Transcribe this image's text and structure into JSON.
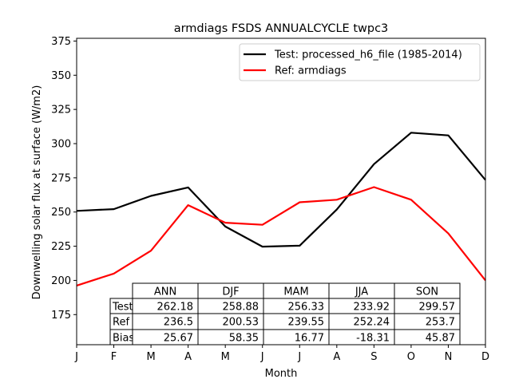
{
  "chart_data": {
    "type": "line",
    "title": "armdiags FSDS ANNUALCYCLE twpc3",
    "xlabel": "Month",
    "ylabel": "Downwelling solar flux at surface (W/m2)",
    "categories": [
      "J",
      "F",
      "M",
      "A",
      "M",
      "J",
      "J",
      "A",
      "S",
      "O",
      "N",
      "D"
    ],
    "ylim": [
      153,
      377
    ],
    "yticks": [
      175,
      200,
      225,
      250,
      275,
      300,
      325,
      350,
      375
    ],
    "grid": false,
    "legend_position": "top-right",
    "series": [
      {
        "name": "Test: processed_h6_file (1985-2014)",
        "color": "#000000",
        "values": [
          250.8,
          252.1,
          261.8,
          268.0,
          239.4,
          224.7,
          225.4,
          251.8,
          285.0,
          308.0,
          306.0,
          273.4
        ]
      },
      {
        "name": "Ref: armdiags",
        "color": "#ff0000",
        "values": [
          196.2,
          205.0,
          221.7,
          255.0,
          242.2,
          240.7,
          257.1,
          259.0,
          268.2,
          259.0,
          234.3,
          200.0
        ]
      }
    ],
    "table": {
      "columns": [
        "ANN",
        "DJF",
        "MAM",
        "JJA",
        "SON"
      ],
      "rows": [
        {
          "label": "Test",
          "values": [
            "262.18",
            "258.88",
            "256.33",
            "233.92",
            "299.57"
          ]
        },
        {
          "label": "Ref",
          "values": [
            "236.5",
            "200.53",
            "239.55",
            "252.24",
            "253.7"
          ]
        },
        {
          "label": "Bias",
          "values": [
            "25.67",
            "58.35",
            "16.77",
            "-18.31",
            "45.87"
          ]
        }
      ]
    }
  }
}
